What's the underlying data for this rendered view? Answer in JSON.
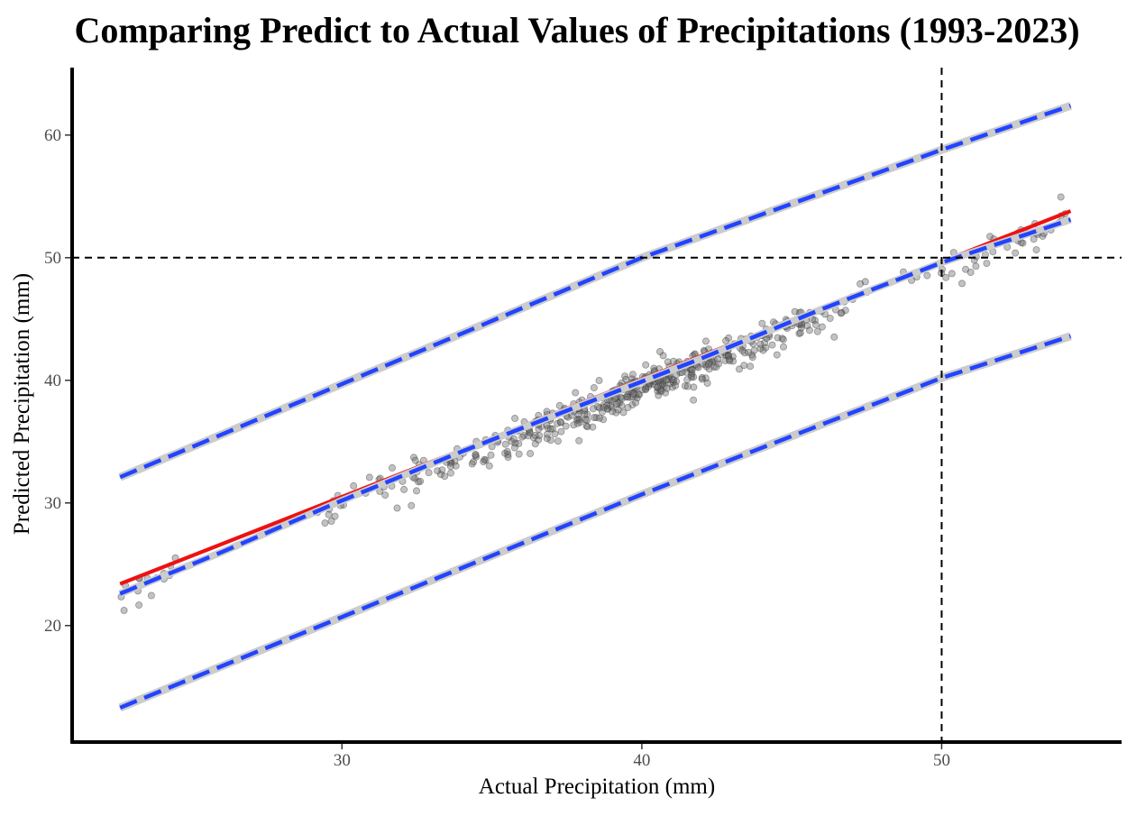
{
  "chart_data": {
    "type": "scatter",
    "title": "Comparing Predict to Actual Values of Precipitations (1993-2023)",
    "xlabel": "Actual Precipitation (mm)",
    "ylabel": "Predicted Precipitation (mm)",
    "xlim": [
      21,
      56
    ],
    "ylim": [
      10.5,
      65.5
    ],
    "x_ticks": [
      30,
      40,
      50
    ],
    "y_ticks": [
      20,
      30,
      40,
      50,
      60
    ],
    "grid": false,
    "legend": "none",
    "reference_lines": {
      "vertical_x": 50,
      "horizontal_y": 50,
      "style": "dashed",
      "color": "#000000"
    },
    "regression_line": {
      "color": "#ee1111",
      "points": [
        [
          22.6,
          23.4
        ],
        [
          54.3,
          53.8
        ]
      ]
    },
    "fit_line": {
      "color": "#2244ff",
      "style": "dashed",
      "points": [
        [
          22.6,
          22.6
        ],
        [
          26,
          26.0
        ],
        [
          30,
          30.2
        ],
        [
          34,
          34.2
        ],
        [
          38,
          38.0
        ],
        [
          42,
          41.8
        ],
        [
          46,
          45.8
        ],
        [
          50,
          49.6
        ],
        [
          54.3,
          53.1
        ]
      ]
    },
    "prediction_interval": {
      "color": "#2244ff",
      "band_color": "#cccccc",
      "style": "dashed",
      "upper": [
        [
          22.6,
          32.1
        ],
        [
          30,
          39.7
        ],
        [
          40,
          50.0
        ],
        [
          50,
          58.8
        ],
        [
          54.3,
          62.4
        ]
      ],
      "lower": [
        [
          22.6,
          13.3
        ],
        [
          30,
          20.7
        ],
        [
          40,
          30.7
        ],
        [
          50,
          40.2
        ],
        [
          54.3,
          43.6
        ]
      ]
    },
    "points": {
      "color": "#666666",
      "opacity": 0.4,
      "count": 520,
      "x_range": [
        22.6,
        54.3
      ]
    }
  }
}
